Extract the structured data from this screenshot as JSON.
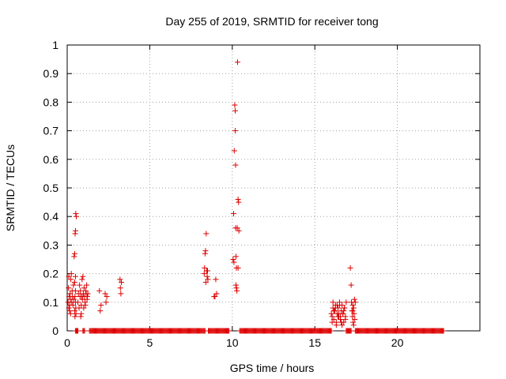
{
  "chart_data": {
    "type": "scatter",
    "title": "Day 255 of 2019, SRMTID for receiver tong",
    "xlabel": "GPS time / hours",
    "ylabel": "SRMTID / TECUs",
    "xlim": [
      0,
      25
    ],
    "ylim": [
      0,
      1
    ],
    "xticks": [
      0,
      5,
      10,
      15,
      20
    ],
    "yticks": [
      0,
      0.1,
      0.2,
      0.3,
      0.4,
      0.5,
      0.6,
      0.7,
      0.8,
      0.9,
      1
    ],
    "xtick_labels": [
      "0",
      "5",
      "10",
      "15",
      "20"
    ],
    "ytick_labels": [
      "0",
      "0.1",
      "0.2",
      "0.3",
      "0.4",
      "0.5",
      "0.6",
      "0.7",
      "0.8",
      "0.9",
      "1"
    ],
    "grid": true,
    "marker": "+",
    "color": "#dd0000",
    "zero_ranges": [
      [
        0.5,
        0.65
      ],
      [
        0.95,
        1.05
      ],
      [
        1.35,
        8.35
      ],
      [
        8.55,
        9.8
      ],
      [
        10.45,
        16.0
      ],
      [
        16.9,
        17.2
      ],
      [
        17.45,
        22.8
      ]
    ],
    "zero_step": 0.05,
    "series": [
      {
        "name": "SRMTID",
        "x": [
          0.05,
          0.08,
          0.1,
          0.12,
          0.15,
          0.18,
          0.2,
          0.22,
          0.25,
          0.28,
          0.3,
          0.32,
          0.35,
          0.38,
          0.4,
          0.42,
          0.45,
          0.48,
          0.5,
          0.52,
          0.55,
          0.45,
          0.47,
          0.5,
          0.52,
          0.47,
          0.5,
          0.45,
          0.5,
          0.53,
          0.1,
          0.15,
          0.2,
          0.65,
          0.68,
          0.72,
          0.75,
          0.78,
          0.8,
          0.82,
          0.85,
          0.88,
          0.9,
          0.92,
          0.95,
          0.98,
          1.0,
          1.02,
          1.05,
          1.08,
          1.1,
          1.12,
          1.15,
          1.18,
          1.2,
          1.22,
          1.25,
          0.85,
          0.9,
          1.95,
          2.0,
          2.05,
          2.3,
          2.35,
          2.4,
          3.2,
          3.22,
          3.25,
          3.28,
          8.3,
          8.32,
          8.35,
          8.38,
          8.4,
          8.42,
          8.45,
          8.48,
          8.5,
          8.52,
          8.9,
          8.95,
          9.0,
          9.05,
          10.05,
          10.08,
          10.1,
          10.12,
          10.15,
          10.18,
          10.2,
          10.22,
          10.25,
          10.28,
          10.3,
          10.32,
          10.35,
          10.38,
          10.4,
          10.18,
          10.2,
          10.22,
          10.25,
          10.35,
          16.0,
          16.05,
          16.1,
          16.15,
          16.2,
          16.25,
          16.3,
          16.35,
          16.4,
          16.45,
          16.5,
          16.55,
          16.6,
          16.65,
          16.7,
          16.75,
          16.8,
          16.85,
          16.9,
          16.1,
          16.2,
          16.3,
          16.4,
          16.5,
          16.6,
          16.7,
          16.8,
          16.05,
          16.25,
          16.45,
          16.65,
          16.85,
          16.15,
          16.35,
          16.55,
          16.75,
          17.15,
          17.2,
          17.22,
          17.25,
          17.28,
          17.3,
          17.32,
          17.35,
          17.38,
          17.4,
          17.42,
          17.45,
          17.3,
          17.35
        ],
        "y": [
          0.1,
          0.15,
          0.08,
          0.12,
          0.09,
          0.13,
          0.11,
          0.18,
          0.2,
          0.1,
          0.14,
          0.12,
          0.09,
          0.16,
          0.11,
          0.26,
          0.27,
          0.34,
          0.35,
          0.41,
          0.4,
          0.07,
          0.05,
          0.19,
          0.08,
          0.12,
          0.1,
          0.17,
          0.14,
          0.06,
          0.19,
          0.07,
          0.06,
          0.1,
          0.13,
          0.08,
          0.16,
          0.12,
          0.14,
          0.05,
          0.09,
          0.12,
          0.18,
          0.11,
          0.19,
          0.13,
          0.08,
          0.15,
          0.12,
          0.1,
          0.09,
          0.14,
          0.13,
          0.16,
          0.11,
          0.12,
          0.13,
          0.06,
          0.12,
          0.14,
          0.07,
          0.09,
          0.13,
          0.1,
          0.12,
          0.18,
          0.15,
          0.13,
          0.17,
          0.2,
          0.22,
          0.27,
          0.28,
          0.17,
          0.34,
          0.21,
          0.19,
          0.21,
          0.18,
          0.12,
          0.12,
          0.18,
          0.13,
          0.25,
          0.41,
          0.24,
          0.63,
          0.79,
          0.7,
          0.58,
          0.16,
          0.15,
          0.14,
          0.36,
          0.94,
          0.46,
          0.45,
          0.35,
          0.77,
          0.36,
          0.26,
          0.22,
          0.22,
          0.06,
          0.05,
          0.08,
          0.04,
          0.07,
          0.09,
          0.03,
          0.06,
          0.08,
          0.05,
          0.1,
          0.04,
          0.07,
          0.09,
          0.06,
          0.03,
          0.08,
          0.05,
          0.1,
          0.1,
          0.07,
          0.02,
          0.05,
          0.09,
          0.03,
          0.06,
          0.08,
          0.03,
          0.08,
          0.06,
          0.02,
          0.04,
          0.07,
          0.09,
          0.05,
          0.07,
          0.22,
          0.16,
          0.1,
          0.07,
          0.05,
          0.09,
          0.03,
          0.08,
          0.06,
          0.11,
          0.04,
          0.1,
          0.07,
          0.02
        ]
      }
    ]
  }
}
